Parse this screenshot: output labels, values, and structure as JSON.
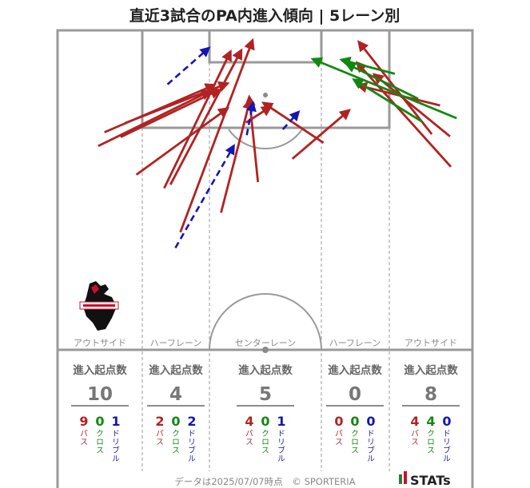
{
  "title": "直近3試合のPA内進入傾向 | 5レーン別",
  "lanes": [
    {
      "label": "アウトサイド",
      "origin_label": "進入起点数",
      "total": "10",
      "pass": "9",
      "cross": "0",
      "dribble": "1"
    },
    {
      "label": "ハーフレーン",
      "origin_label": "進入起点数",
      "total": "4",
      "pass": "2",
      "cross": "0",
      "dribble": "2"
    },
    {
      "label": "センターレーン",
      "origin_label": "進入起点数",
      "total": "5",
      "pass": "4",
      "cross": "0",
      "dribble": "1"
    },
    {
      "label": "ハーフレーン",
      "origin_label": "進入起点数",
      "total": "0",
      "pass": "0",
      "cross": "0",
      "dribble": "0"
    },
    {
      "label": "アウトサイド",
      "origin_label": "進入起点数",
      "total": "8",
      "pass": "4",
      "cross": "4",
      "dribble": "0"
    }
  ],
  "type_labels": {
    "pass": "パス",
    "cross": "クロス",
    "dribble": "ドリブル"
  },
  "colors": {
    "pass": "#b22222",
    "cross": "#118811",
    "dribble": "#1515b5",
    "pitch_line": "#9a9a9a"
  },
  "footer": {
    "note": "データは2025/07/07時点",
    "credit": "© SPORTERIA",
    "brand": "STATs"
  },
  "icons": {
    "club_logo": "horse-crest-icon",
    "brand_logo": "stats-logo-icon"
  },
  "chart_data": {
    "type": "scatter",
    "coordinate_system": "pitch-normalized 0-100 (x across, y down from goal line)",
    "series": [
      {
        "name": "パス",
        "arrows": [
          [
            29.6,
            63.2,
            47.0,
            3.1
          ],
          [
            27.2,
            48.3,
            44.3,
            6.2
          ],
          [
            25.7,
            49.4,
            41.7,
            6.6
          ],
          [
            16.3,
            29.0,
            41.0,
            16.6
          ],
          [
            11.3,
            31.9,
            37.8,
            17.1
          ],
          [
            15.2,
            33.4,
            39.0,
            18.6
          ],
          [
            9.8,
            36.2,
            36.8,
            19.0
          ],
          [
            19.0,
            45.2,
            41.0,
            24.4
          ],
          [
            48.3,
            47.5,
            46.2,
            20.8
          ],
          [
            39.4,
            57.1,
            46.4,
            21.8
          ],
          [
            45.4,
            28.9,
            51.4,
            23.9
          ],
          [
            64.1,
            35.2,
            49.6,
            22.7
          ],
          [
            56.6,
            40.2,
            70.3,
            25.0
          ],
          [
            94.6,
            33.2,
            76.3,
            13.8
          ],
          [
            92.2,
            23.5,
            72.4,
            17.2
          ],
          [
            94.8,
            42.7,
            72.2,
            10.1
          ],
          [
            90.2,
            32.5,
            72.6,
            3.6
          ]
        ]
      },
      {
        "name": "クロス",
        "arrows": [
          [
            96.2,
            27.5,
            61.5,
            9.0
          ],
          [
            87.9,
            28.6,
            71.4,
            15.4
          ],
          [
            86.9,
            21.4,
            69.6,
            10.4
          ],
          [
            81.3,
            13.6,
            68.4,
            9.2
          ]
        ]
      },
      {
        "name": "ドリブル",
        "arrows": [
          [
            26.5,
            16.9,
            36.5,
            5.5
          ],
          [
            28.4,
            68.1,
            42.5,
            36.1
          ],
          [
            45.6,
            32.8,
            47.1,
            22.7
          ],
          [
            54.3,
            31.0,
            58.1,
            25.5
          ]
        ]
      }
    ]
  }
}
